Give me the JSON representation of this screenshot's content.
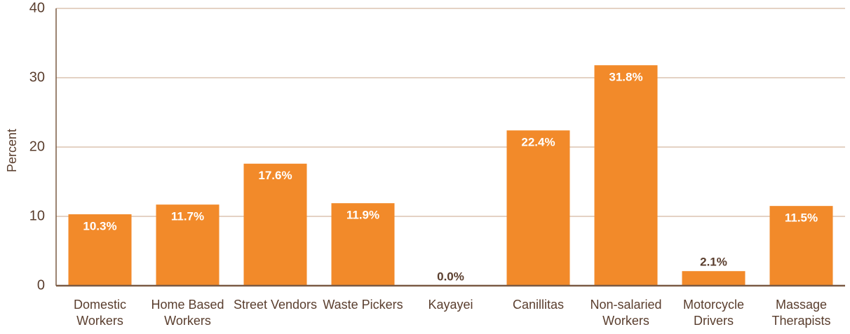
{
  "chart_data": {
    "type": "bar",
    "y_label": "Percent",
    "categories": [
      "Domestic Workers",
      "Home Based Workers",
      "Street Vendors",
      "Waste Pickers",
      "Kayayei",
      "Canillitas",
      "Non-salaried Workers",
      "Motorcycle Drivers",
      "Massage Therapists"
    ],
    "values": [
      10.3,
      11.7,
      17.6,
      11.9,
      0.0,
      22.4,
      31.8,
      2.1,
      11.5
    ],
    "value_labels": [
      "10.3%",
      "11.7%",
      "17.6%",
      "11.9%",
      "0.0%",
      "22.4%",
      "31.8%",
      "2.1%",
      "11.5%"
    ],
    "color": "#f28a2a",
    "ylim": [
      0,
      40
    ],
    "yticks": [
      0,
      10,
      20,
      30,
      40
    ],
    "grid": true
  }
}
